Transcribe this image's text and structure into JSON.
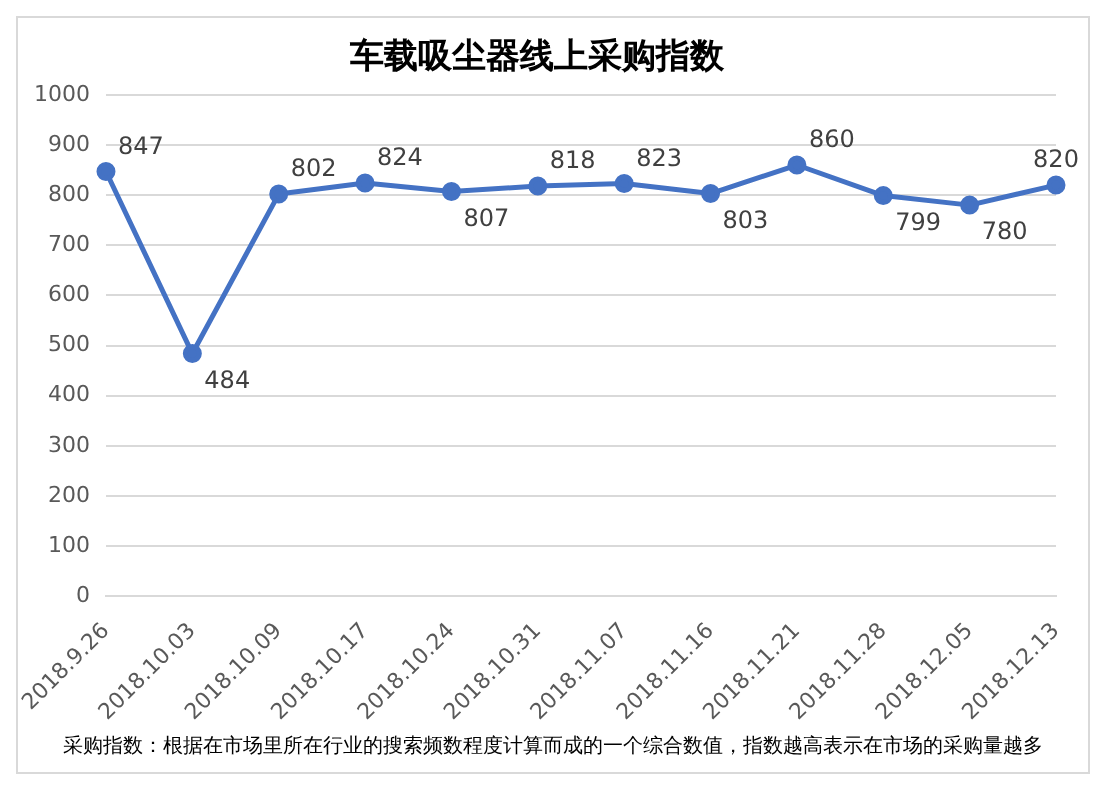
{
  "chart_data": {
    "type": "line",
    "title": "车载吸尘器线上采购指数",
    "categories": [
      "2018.9.26",
      "2018.10.03",
      "2018.10.09",
      "2018.10.17",
      "2018.10.24",
      "2018.10.31",
      "2018.11.07",
      "2018.11.16",
      "2018.11.21",
      "2018.11.28",
      "2018.12.05",
      "2018.12.13"
    ],
    "series": [
      {
        "color": "#4472c4",
        "values": [
          847,
          484,
          802,
          824,
          807,
          818,
          823,
          803,
          860,
          799,
          780,
          820
        ]
      }
    ],
    "ylim": [
      0,
      1000
    ],
    "yticks": [
      0,
      100,
      200,
      300,
      400,
      500,
      600,
      700,
      800,
      900,
      1000
    ],
    "grid": "y",
    "legend": false,
    "marker": "circle",
    "data_labels": true,
    "annotations": [
      "采购指数：根据在市场里所在行业的搜索频数程度计算而成的一个综合数值，指数越高表示在市场的采购量越多"
    ]
  }
}
